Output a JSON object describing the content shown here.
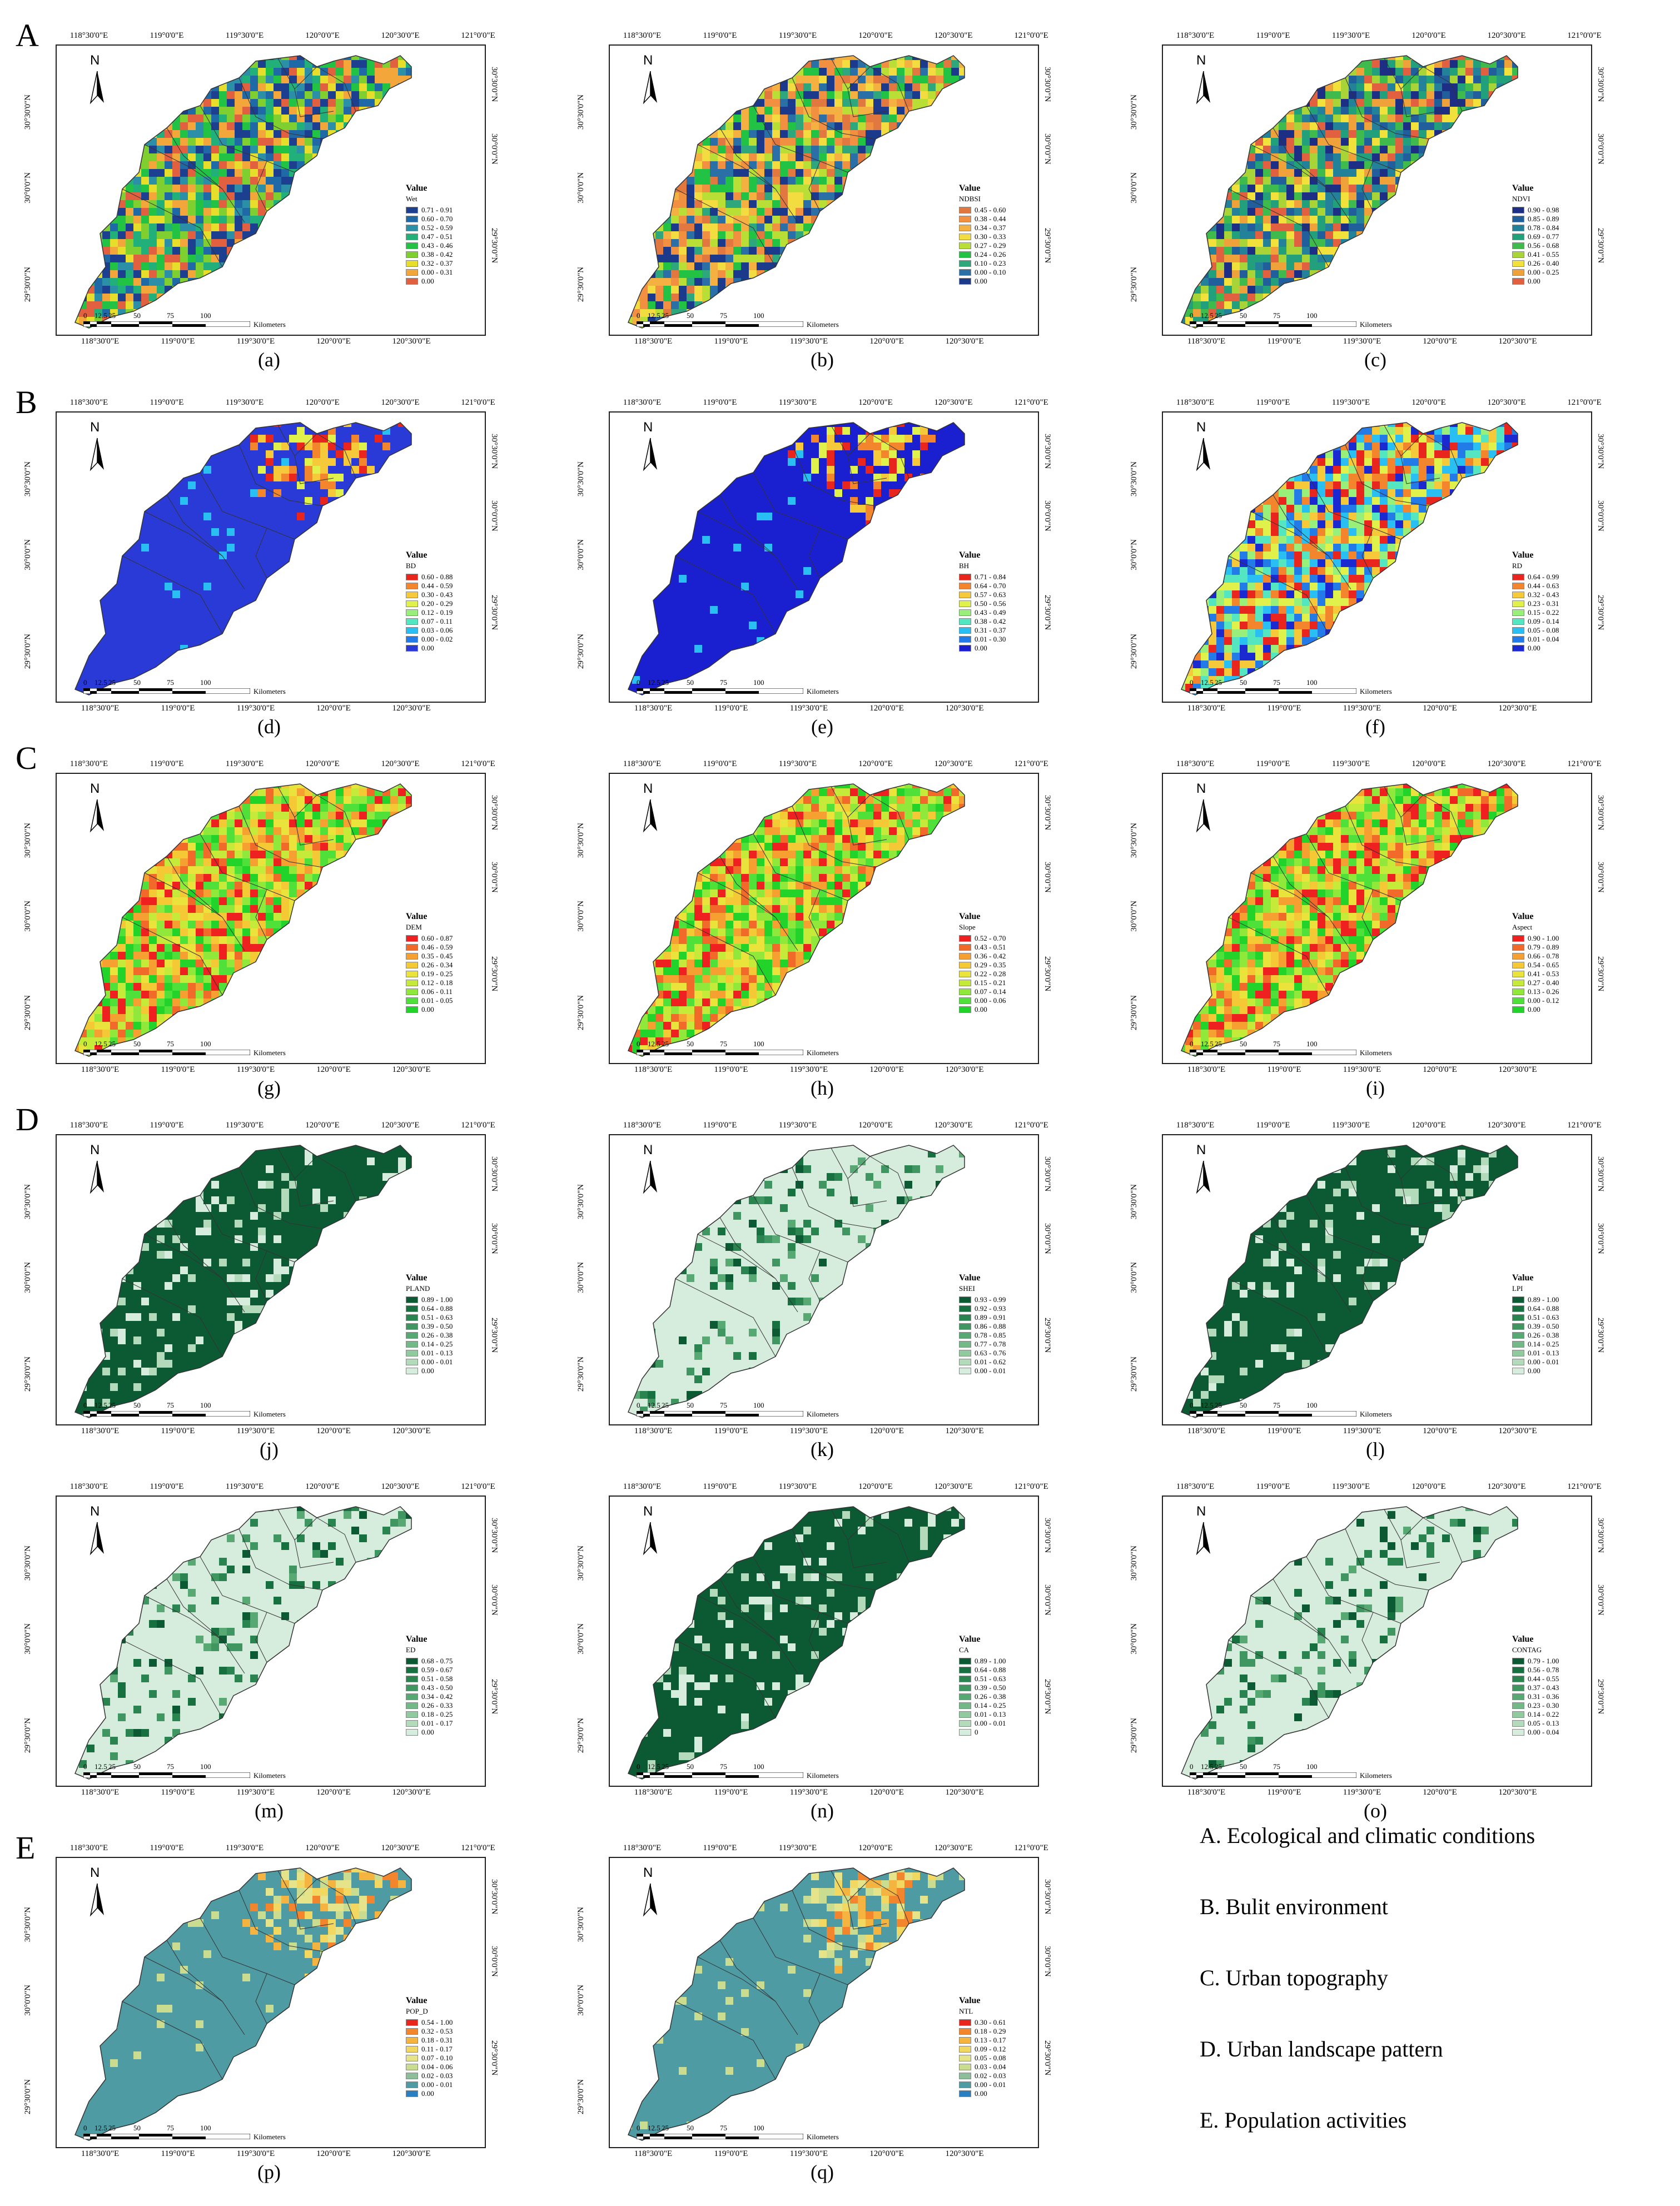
{
  "row_letters": [
    "A",
    "B",
    "C",
    "D",
    "E"
  ],
  "coords": {
    "top": [
      "118°30'0\"E",
      "119°0'0\"E",
      "119°30'0\"E",
      "120°0'0\"E",
      "120°30'0\"E",
      "121°0'0\"E"
    ],
    "bottom": [
      "118°30'0\"E",
      "119°0'0\"E",
      "119°30'0\"E",
      "120°0'0\"E",
      "120°30'0\"E"
    ],
    "left": [
      "30°30'0\"N",
      "30°0'0\"N",
      "29°30'0\"N"
    ],
    "right": [
      "30°30'0\"N",
      "30°0'0\"N",
      "29°30'0\"N"
    ]
  },
  "north_label": "N",
  "scale": {
    "ticks": [
      "0",
      "12.5",
      "25",
      "50",
      "75",
      "100"
    ],
    "unit": "Kilometers"
  },
  "legend_title": "Value",
  "panels": [
    {
      "id": "a",
      "caption": "(a)",
      "var": "Wet",
      "palette": [
        "#1d3f8f",
        "#1f6aa6",
        "#2b8fa8",
        "#22b07a",
        "#22c244",
        "#7fcf30",
        "#e6de2a",
        "#f3a63a",
        "#e06040"
      ],
      "classes": [
        "0.71 - 0.91",
        "0.60 - 0.70",
        "0.52 - 0.59",
        "0.47 - 0.51",
        "0.43 - 0.46",
        "0.38 - 0.42",
        "0.32 - 0.37",
        "0.00 - 0.31",
        "0.00"
      ]
    },
    {
      "id": "b",
      "caption": "(b)",
      "var": "NDBSI",
      "palette": [
        "#e07840",
        "#f09040",
        "#f4b040",
        "#f2dc40",
        "#b9de35",
        "#22c244",
        "#2da77b",
        "#2a6fa6",
        "#1c3a8c"
      ],
      "classes": [
        "0.45 - 0.60",
        "0.38 - 0.44",
        "0.34 - 0.37",
        "0.30 - 0.33",
        "0.27 - 0.29",
        "0.24 - 0.26",
        "0.10 - 0.23",
        "0.00 - 0.10",
        "0.00"
      ]
    },
    {
      "id": "c",
      "caption": "(c)",
      "var": "NDVI",
      "palette": [
        "#1c2f85",
        "#215e9c",
        "#23829a",
        "#22a07c",
        "#3fba4c",
        "#a9d437",
        "#f2e03b",
        "#f0a23a",
        "#e0603f"
      ],
      "classes": [
        "0.90 - 0.98",
        "0.85 - 0.89",
        "0.78 - 0.84",
        "0.69 - 0.77",
        "0.56 - 0.68",
        "0.41 - 0.55",
        "0.26 - 0.40",
        "0.00 - 0.25",
        "0.00"
      ]
    },
    {
      "id": "d",
      "caption": "(d)",
      "var": "BD",
      "palette": [
        "#e8261e",
        "#f3862c",
        "#f6c93a",
        "#dff14a",
        "#98f07a",
        "#53e6c0",
        "#29bff3",
        "#237be8",
        "#2a3ad6"
      ],
      "classes": [
        "0.60 - 0.88",
        "0.44 - 0.59",
        "0.30 - 0.43",
        "0.20 - 0.29",
        "0.12 - 0.19",
        "0.07 - 0.11",
        "0.03 - 0.06",
        "0.00 - 0.02",
        "0.00"
      ]
    },
    {
      "id": "e",
      "caption": "(e)",
      "var": "BH",
      "palette": [
        "#e8261e",
        "#f3862c",
        "#f6c93a",
        "#dff14a",
        "#98f07a",
        "#53e6c0",
        "#29bff3",
        "#237be8",
        "#1a1fd0"
      ],
      "classes": [
        "0.71 - 0.84",
        "0.64 - 0.70",
        "0.57 - 0.63",
        "0.50 - 0.56",
        "0.43 - 0.49",
        "0.38 - 0.42",
        "0.31 - 0.37",
        "0.01 - 0.30",
        "0.00"
      ]
    },
    {
      "id": "f",
      "caption": "(f)",
      "var": "RD",
      "palette": [
        "#e8261e",
        "#f3862c",
        "#f6c93a",
        "#dff14a",
        "#98f07a",
        "#53e6c0",
        "#29bff3",
        "#237be8",
        "#1a2ad0"
      ],
      "classes": [
        "0.64 - 0.99",
        "0.44 - 0.63",
        "0.32 - 0.43",
        "0.23 - 0.31",
        "0.15 - 0.22",
        "0.09 - 0.14",
        "0.05 - 0.08",
        "0.01 - 0.04",
        "0.00"
      ]
    },
    {
      "id": "g",
      "caption": "(g)",
      "var": "DEM",
      "palette": [
        "#ee2020",
        "#f26a2a",
        "#f5a030",
        "#f5c935",
        "#eae33c",
        "#c6ea3a",
        "#8fe83a",
        "#4fe03a",
        "#22d42a"
      ],
      "classes": [
        "0.60 - 0.87",
        "0.46 - 0.59",
        "0.35 - 0.45",
        "0.26 - 0.34",
        "0.19 - 0.25",
        "0.12 - 0.18",
        "0.06 - 0.11",
        "0.01 - 0.05",
        "0.00"
      ]
    },
    {
      "id": "h",
      "caption": "(h)",
      "var": "Slope",
      "palette": [
        "#ee2020",
        "#f26a2a",
        "#f5a030",
        "#f5c935",
        "#eae33c",
        "#c6ea3a",
        "#8fe83a",
        "#4fe03a",
        "#22d42a"
      ],
      "classes": [
        "0.52 - 0.70",
        "0.43 - 0.51",
        "0.36 - 0.42",
        "0.29 - 0.35",
        "0.22 - 0.28",
        "0.15 - 0.21",
        "0.07 - 0.14",
        "0.00 - 0.06",
        "0.00"
      ]
    },
    {
      "id": "i",
      "caption": "(i)",
      "var": "Aspect",
      "palette": [
        "#ee2020",
        "#f26a2a",
        "#f5a030",
        "#f5c935",
        "#eae33c",
        "#c6ea3a",
        "#8fe83a",
        "#4fe03a",
        "#22d42a"
      ],
      "classes": [
        "0.90 - 1.00",
        "0.79 - 0.89",
        "0.66 - 0.78",
        "0.54 - 0.65",
        "0.41 - 0.53",
        "0.27 - 0.40",
        "0.13 - 0.26",
        "0.00 - 0.12",
        "0.00"
      ]
    },
    {
      "id": "j",
      "caption": "(j)",
      "var": "PLAND",
      "palette": [
        "#0b5a34",
        "#17703f",
        "#2a8450",
        "#3f9661",
        "#58a873",
        "#73b988",
        "#92ca9f",
        "#b3dbbb",
        "#d6ecdc"
      ],
      "classes": [
        "0.89 - 1.00",
        "0.64 - 0.88",
        "0.51 - 0.63",
        "0.39 - 0.50",
        "0.26 - 0.38",
        "0.14 - 0.25",
        "0.01 - 0.13",
        "0.00 - 0.01",
        "0.00"
      ]
    },
    {
      "id": "k",
      "caption": "(k)",
      "var": "SHEI",
      "palette": [
        "#0b5a34",
        "#17703f",
        "#2a8450",
        "#3f9661",
        "#58a873",
        "#73b988",
        "#92ca9f",
        "#b3dbbb",
        "#d6ecdc"
      ],
      "classes": [
        "0.93 - 0.99",
        "0.92 - 0.93",
        "0.89 - 0.91",
        "0.86 - 0.88",
        "0.78 - 0.85",
        "0.77 - 0.78",
        "0.63 - 0.76",
        "0.01 - 0.62",
        "0.00 - 0.01"
      ]
    },
    {
      "id": "l",
      "caption": "(l)",
      "var": "LPI",
      "palette": [
        "#0b5a34",
        "#17703f",
        "#2a8450",
        "#3f9661",
        "#58a873",
        "#73b988",
        "#92ca9f",
        "#b3dbbb",
        "#d6ecdc"
      ],
      "classes": [
        "0.89 - 1.00",
        "0.64 - 0.88",
        "0.51 - 0.63",
        "0.39 - 0.50",
        "0.26 - 0.38",
        "0.14 - 0.25",
        "0.01 - 0.13",
        "0.00 - 0.01",
        "0.00"
      ]
    },
    {
      "id": "m",
      "caption": "(m)",
      "var": "ED",
      "palette": [
        "#0b5a34",
        "#17703f",
        "#2a8450",
        "#3f9661",
        "#58a873",
        "#73b988",
        "#92ca9f",
        "#b3dbbb",
        "#d6ecdc"
      ],
      "classes": [
        "0.68 - 0.75",
        "0.59 - 0.67",
        "0.51 - 0.58",
        "0.43 - 0.50",
        "0.34 - 0.42",
        "0.26 - 0.33",
        "0.18 - 0.25",
        "0.01 - 0.17",
        "0.00"
      ]
    },
    {
      "id": "n",
      "caption": "(n)",
      "var": "CA",
      "palette": [
        "#0b5a34",
        "#17703f",
        "#2a8450",
        "#3f9661",
        "#58a873",
        "#73b988",
        "#92ca9f",
        "#b3dbbb",
        "#d6ecdc"
      ],
      "classes": [
        "0.89 - 1.00",
        "0.64 - 0.88",
        "0.51 - 0.63",
        "0.39 - 0.50",
        "0.26 - 0.38",
        "0.14 - 0.25",
        "0.01 - 0.13",
        "0.00 - 0.01",
        "0"
      ]
    },
    {
      "id": "o",
      "caption": "(o)",
      "var": "CONTAG",
      "palette": [
        "#0b5a34",
        "#17703f",
        "#2a8450",
        "#3f9661",
        "#58a873",
        "#73b988",
        "#92ca9f",
        "#b3dbbb",
        "#d6ecdc"
      ],
      "classes": [
        "0.79 - 1.00",
        "0.56 - 0.78",
        "0.44 - 0.55",
        "0.37 - 0.43",
        "0.31 - 0.36",
        "0.23 - 0.30",
        "0.14 - 0.22",
        "0.05 - 0.13",
        "0.00 - 0.04"
      ]
    },
    {
      "id": "p",
      "caption": "(p)",
      "var": "POP_D",
      "palette": [
        "#e8261e",
        "#f3862c",
        "#f5b440",
        "#f2d860",
        "#e6e48a",
        "#c9dc8f",
        "#8ebd9a",
        "#4e9ba3",
        "#2a7fc0"
      ],
      "classes": [
        "0.54 - 1.00",
        "0.32 - 0.53",
        "0.18 - 0.31",
        "0.11 - 0.17",
        "0.07 - 0.10",
        "0.04 - 0.06",
        "0.02 - 0.03",
        "0.00 - 0.01",
        "0.00"
      ]
    },
    {
      "id": "q",
      "caption": "(q)",
      "var": "NTL",
      "palette": [
        "#e8261e",
        "#f3862c",
        "#f5b440",
        "#f2d860",
        "#e6e48a",
        "#c9dc8f",
        "#8ebd9a",
        "#4e9ba3",
        "#2a7fc0"
      ],
      "classes": [
        "0.30 - 0.61",
        "0.18 - 0.29",
        "0.13 - 0.17",
        "0.09 - 0.12",
        "0.05 - 0.08",
        "0.03 - 0.04",
        "0.02 - 0.03",
        "0.00 - 0.01",
        "0.00"
      ]
    }
  ],
  "summary": [
    "A. Ecological and climatic conditions",
    "B. Bulit environment",
    "C. Urban topography",
    "D. Urban landscape pattern",
    "E. Population activities"
  ]
}
